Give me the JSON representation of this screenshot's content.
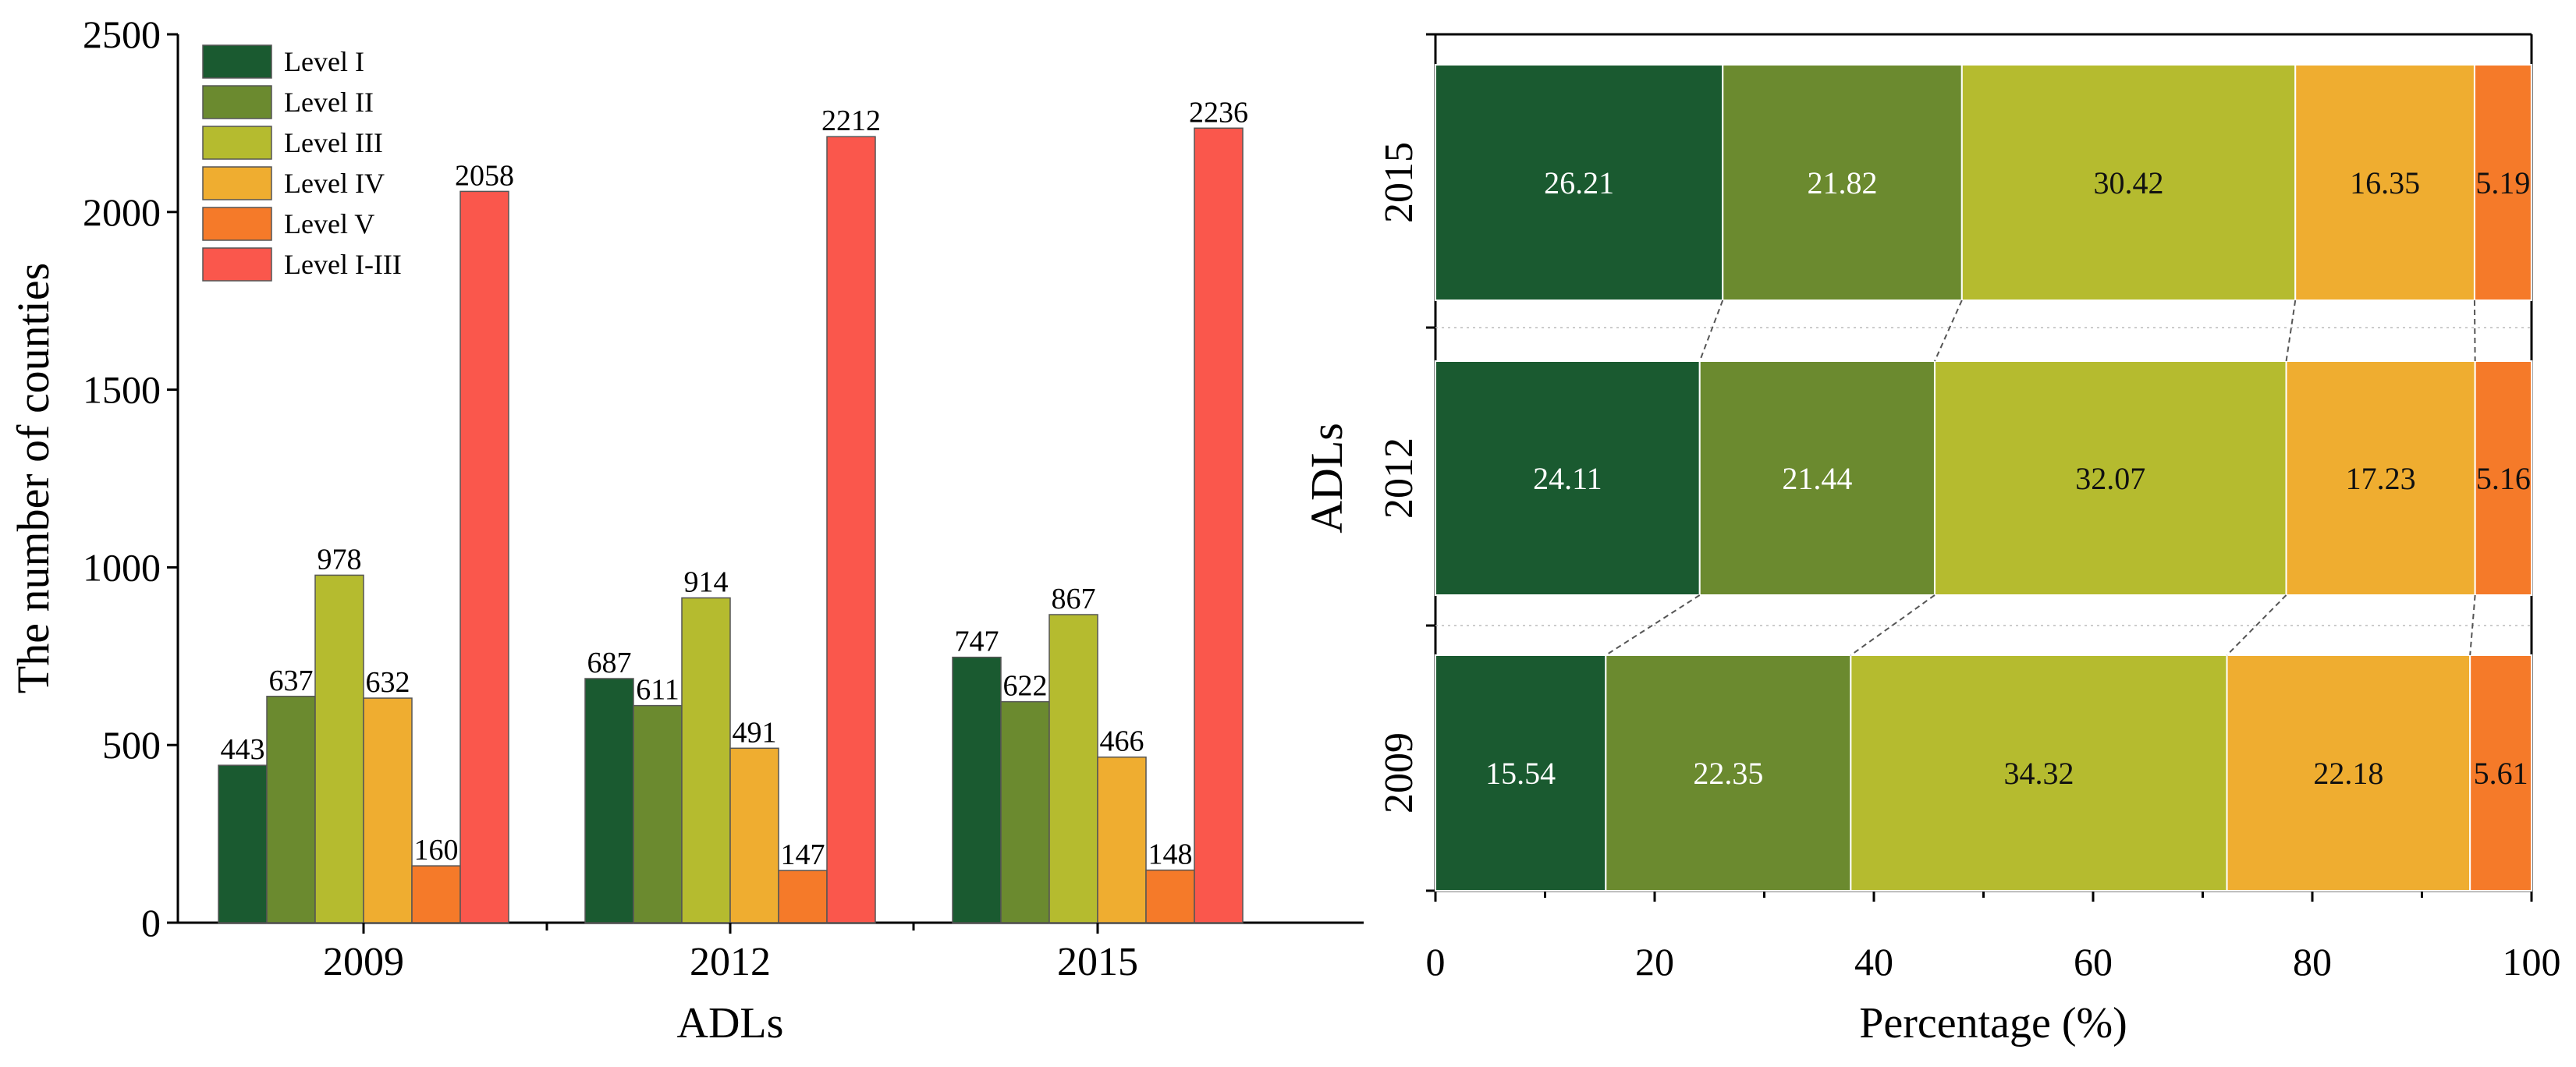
{
  "colors": {
    "level_i": "#1a5a30",
    "level_ii": "#6b8a2f",
    "level_iii": "#b5bb2f",
    "level_iv": "#efad30",
    "level_v": "#f57a29",
    "level_i_iii": "#fa574c"
  },
  "chart_data": [
    {
      "type": "bar",
      "title": "",
      "xlabel": "ADLs",
      "ylabel": "The number of counties",
      "ylim": [
        0,
        2500
      ],
      "yticks": [
        "0",
        "500",
        "1000",
        "1500",
        "2000",
        "2500"
      ],
      "categories": [
        "2009",
        "2012",
        "2015"
      ],
      "legend_position": "top-left",
      "series": [
        {
          "name": "Level I",
          "values": [
            443,
            687,
            747
          ],
          "labels": [
            "443",
            "687",
            "747"
          ]
        },
        {
          "name": "Level II",
          "values": [
            637,
            611,
            622
          ],
          "labels": [
            "637",
            "611",
            "622"
          ]
        },
        {
          "name": "Level III",
          "values": [
            978,
            914,
            867
          ],
          "labels": [
            "978",
            "914",
            "867"
          ]
        },
        {
          "name": "Level IV",
          "values": [
            632,
            491,
            466
          ],
          "labels": [
            "632",
            "491",
            "466"
          ]
        },
        {
          "name": "Level V",
          "values": [
            160,
            147,
            148
          ],
          "labels": [
            "160",
            "147",
            "148"
          ]
        },
        {
          "name": "Level I-III",
          "values": [
            2058,
            2212,
            2236
          ],
          "labels": [
            "2058",
            "2212",
            "2236"
          ]
        }
      ]
    },
    {
      "type": "bar",
      "orientation": "horizontal-stacked",
      "title": "",
      "xlabel": "Percentage (%)",
      "ylabel": "ADLs",
      "xlim": [
        0,
        100
      ],
      "xticks": [
        "0",
        "20",
        "40",
        "60",
        "80",
        "100"
      ],
      "categories": [
        "2015",
        "2012",
        "2009"
      ],
      "series": [
        {
          "name": "Level I",
          "values": [
            26.21,
            24.11,
            15.54
          ],
          "labels": [
            "26.21",
            "24.11",
            "15.54"
          ]
        },
        {
          "name": "Level II",
          "values": [
            21.82,
            21.44,
            22.35
          ],
          "labels": [
            "21.82",
            "21.44",
            "22.35"
          ]
        },
        {
          "name": "Level III",
          "values": [
            30.42,
            32.07,
            34.32
          ],
          "labels": [
            "30.42",
            "32.07",
            "34.32"
          ]
        },
        {
          "name": "Level IV",
          "values": [
            16.35,
            17.23,
            22.18
          ],
          "labels": [
            "16.35",
            "17.23",
            "22.18"
          ]
        },
        {
          "name": "Level V",
          "values": [
            5.19,
            5.16,
            5.61
          ],
          "labels": [
            "5.19",
            "5.16",
            "5.61"
          ]
        }
      ]
    }
  ]
}
